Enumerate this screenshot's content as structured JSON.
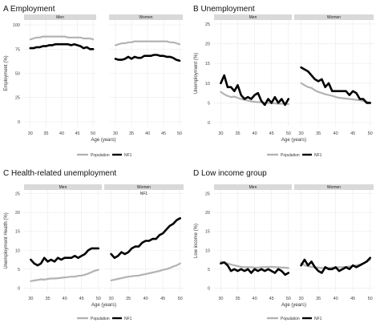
{
  "chart_data": [
    {
      "panel": "A Employment",
      "type": "line",
      "facets": [
        "Men",
        "Women"
      ],
      "xlabel": "Age (years)",
      "ylabel": "Employment (%)",
      "x_ticks": [
        "30",
        "35",
        "40",
        "45",
        "50"
      ],
      "y_ticks": [
        "0",
        "25",
        "50",
        "75",
        "100"
      ],
      "xlim": [
        28,
        51
      ],
      "ylim": [
        -5,
        105
      ],
      "legend": [
        "Population",
        "NF1"
      ],
      "series": [
        {
          "name": "Population",
          "color": "#b3b3b3",
          "facet": "Men",
          "x": [
            30,
            31,
            32,
            33,
            34,
            35,
            36,
            37,
            38,
            39,
            40,
            41,
            42,
            43,
            44,
            45,
            46,
            47,
            48,
            49,
            50
          ],
          "values": [
            85,
            86,
            87,
            87,
            88,
            88,
            88,
            88,
            88,
            88,
            88,
            88,
            87,
            87,
            87,
            87,
            87,
            86,
            86,
            86,
            85
          ]
        },
        {
          "name": "NF1",
          "color": "#000000",
          "facet": "Men",
          "x": [
            30,
            31,
            32,
            33,
            34,
            35,
            36,
            37,
            38,
            39,
            40,
            41,
            42,
            43,
            44,
            45,
            46,
            47,
            48,
            49,
            50
          ],
          "values": [
            76,
            76,
            77,
            77,
            78,
            78,
            79,
            79,
            80,
            80,
            80,
            80,
            80,
            79,
            80,
            79,
            78,
            76,
            77,
            75,
            75
          ]
        },
        {
          "name": "Population",
          "color": "#b3b3b3",
          "facet": "Women",
          "x": [
            30,
            31,
            32,
            33,
            34,
            35,
            36,
            37,
            38,
            39,
            40,
            41,
            42,
            43,
            44,
            45,
            46,
            47,
            48,
            49,
            50
          ],
          "values": [
            79,
            80,
            81,
            81,
            82,
            82,
            83,
            83,
            83,
            83,
            83,
            83,
            83,
            83,
            83,
            83,
            83,
            82,
            82,
            81,
            80
          ]
        },
        {
          "name": "NF1",
          "color": "#000000",
          "facet": "Women",
          "x": [
            30,
            31,
            32,
            33,
            34,
            35,
            36,
            37,
            38,
            39,
            40,
            41,
            42,
            43,
            44,
            45,
            46,
            47,
            48,
            49,
            50
          ],
          "values": [
            65,
            64,
            64,
            65,
            67,
            65,
            67,
            66,
            66,
            68,
            68,
            68,
            69,
            69,
            68,
            68,
            67,
            67,
            66,
            64,
            63
          ]
        }
      ]
    },
    {
      "panel": "B Unemployment",
      "type": "line",
      "facets": [
        "Men",
        "Women"
      ],
      "xlabel": "Age (years)",
      "ylabel": "Unemployment (%)",
      "x_ticks": [
        "30",
        "35",
        "40",
        "45",
        "50"
      ],
      "y_ticks": [
        "0",
        "5",
        "10",
        "15",
        "20",
        "25"
      ],
      "xlim": [
        28,
        51
      ],
      "ylim": [
        -1,
        26
      ],
      "legend": [
        "Population",
        "NF1"
      ],
      "series": [
        {
          "name": "Population",
          "color": "#b3b3b3",
          "facet": "Men",
          "x": [
            30,
            31,
            32,
            33,
            34,
            35,
            36,
            37,
            38,
            39,
            40,
            41,
            42,
            43,
            44,
            45,
            46,
            47,
            48,
            49,
            50
          ],
          "values": [
            7.8,
            7.2,
            6.8,
            6.5,
            6.6,
            6.3,
            6.0,
            5.8,
            5.6,
            5.4,
            5.3,
            5.2,
            5.2,
            5.0,
            5.0,
            4.9,
            4.9,
            4.8,
            4.8,
            4.8,
            4.7
          ]
        },
        {
          "name": "NF1",
          "color": "#000000",
          "facet": "Men",
          "x": [
            30,
            31,
            32,
            33,
            34,
            35,
            36,
            37,
            38,
            39,
            40,
            41,
            42,
            43,
            44,
            45,
            46,
            47,
            48,
            49,
            50
          ],
          "values": [
            10,
            12,
            9,
            9,
            8,
            9.5,
            7,
            6,
            6.5,
            6,
            7,
            7.5,
            5.5,
            4.5,
            6,
            5,
            6.5,
            5,
            6,
            4.5,
            6
          ]
        },
        {
          "name": "Population",
          "color": "#b3b3b3",
          "facet": "Women",
          "x": [
            30,
            31,
            32,
            33,
            34,
            35,
            36,
            37,
            38,
            39,
            40,
            41,
            42,
            43,
            44,
            45,
            46,
            47,
            48,
            49,
            50
          ],
          "values": [
            10,
            9.5,
            9,
            8.8,
            8.2,
            7.8,
            7.5,
            7.2,
            7,
            6.8,
            6.5,
            6.3,
            6.2,
            6.1,
            6,
            5.9,
            5.8,
            5.7,
            5.5,
            5.3,
            5.1
          ]
        },
        {
          "name": "NF1",
          "color": "#000000",
          "facet": "Women",
          "x": [
            30,
            31,
            32,
            33,
            34,
            35,
            36,
            37,
            38,
            39,
            40,
            41,
            42,
            43,
            44,
            45,
            46,
            47,
            48,
            49,
            50
          ],
          "values": [
            14,
            13.5,
            13,
            12,
            11,
            10.5,
            11,
            9,
            10,
            8,
            8,
            8,
            8,
            8,
            7,
            8,
            7.5,
            6,
            6,
            5,
            5
          ]
        }
      ]
    },
    {
      "panel": "C Health-related unemployment",
      "type": "line",
      "facets": [
        "Men",
        "Women"
      ],
      "xlabel": "Age (years)",
      "ylabel": "Unemployment Health (%)",
      "x_ticks": [
        "30",
        "35",
        "40",
        "45",
        "50"
      ],
      "y_ticks": [
        "0",
        "5",
        "10",
        "15",
        "20",
        "25"
      ],
      "xlim": [
        28,
        51
      ],
      "ylim": [
        -1,
        26
      ],
      "annotation": "NF1",
      "legend": [
        "Population",
        "NF1"
      ],
      "series": [
        {
          "name": "Population",
          "color": "#b3b3b3",
          "facet": "Men",
          "x": [
            30,
            31,
            32,
            33,
            34,
            35,
            36,
            37,
            38,
            39,
            40,
            41,
            42,
            43,
            44,
            45,
            46,
            47,
            48,
            49,
            50
          ],
          "values": [
            1.8,
            2.0,
            2.1,
            2.3,
            2.2,
            2.4,
            2.5,
            2.5,
            2.6,
            2.7,
            2.8,
            2.9,
            3.0,
            3.0,
            3.2,
            3.3,
            3.5,
            3.8,
            4.2,
            4.6,
            4.8
          ]
        },
        {
          "name": "NF1",
          "color": "#000000",
          "facet": "Men",
          "x": [
            30,
            31,
            32,
            33,
            34,
            35,
            36,
            37,
            38,
            39,
            40,
            41,
            42,
            43,
            44,
            45,
            46,
            47,
            48,
            49,
            50
          ],
          "values": [
            7.5,
            6.5,
            6.0,
            6.5,
            8.0,
            7.0,
            7.5,
            7.0,
            8.0,
            7.5,
            8.0,
            8.0,
            8.0,
            8.5,
            8.0,
            8.5,
            9.0,
            10.0,
            10.5,
            10.5,
            10.5
          ]
        },
        {
          "name": "Population",
          "color": "#b3b3b3",
          "facet": "Women",
          "x": [
            30,
            31,
            32,
            33,
            34,
            35,
            36,
            37,
            38,
            39,
            40,
            41,
            42,
            43,
            44,
            45,
            46,
            47,
            48,
            49,
            50
          ],
          "values": [
            2.0,
            2.2,
            2.4,
            2.6,
            2.8,
            3.0,
            3.1,
            3.2,
            3.3,
            3.5,
            3.7,
            3.9,
            4.1,
            4.3,
            4.5,
            4.8,
            5.0,
            5.3,
            5.7,
            6.0,
            6.5
          ]
        },
        {
          "name": "NF1",
          "color": "#000000",
          "facet": "Women",
          "x": [
            30,
            31,
            32,
            33,
            34,
            35,
            36,
            37,
            38,
            39,
            40,
            41,
            42,
            43,
            44,
            45,
            46,
            47,
            48,
            49,
            50
          ],
          "values": [
            9.0,
            8.0,
            8.5,
            9.5,
            9.0,
            9.5,
            10.5,
            11.0,
            11.0,
            12.0,
            12.5,
            12.5,
            13.0,
            13.0,
            14.0,
            14.5,
            15.5,
            16.5,
            17.0,
            18.0,
            18.5
          ]
        }
      ]
    },
    {
      "panel": "D Low income group",
      "type": "line",
      "facets": [
        "Men",
        "Women"
      ],
      "xlabel": "Age (years)",
      "ylabel": "Low income (%)",
      "x_ticks": [
        "30",
        "35",
        "40",
        "45",
        "50"
      ],
      "y_ticks": [
        "0",
        "5",
        "10",
        "15",
        "20",
        "25"
      ],
      "xlim": [
        28,
        51
      ],
      "ylim": [
        -1,
        26
      ],
      "legend": [
        "Population",
        "NF1"
      ],
      "series": [
        {
          "name": "Population",
          "color": "#b3b3b3",
          "facet": "Men",
          "x": [
            30,
            31,
            32,
            33,
            34,
            35,
            36,
            37,
            38,
            39,
            40,
            41,
            42,
            43,
            44,
            45,
            46,
            47,
            48,
            49,
            50
          ],
          "values": [
            7.0,
            6.8,
            6.5,
            6.2,
            6.0,
            5.8,
            5.6,
            5.5,
            5.5,
            5.5,
            5.4,
            5.4,
            5.5,
            5.5,
            5.6,
            5.6,
            5.5,
            5.5,
            5.4,
            5.4,
            5.3
          ]
        },
        {
          "name": "NF1",
          "color": "#000000",
          "facet": "Men",
          "x": [
            30,
            31,
            32,
            33,
            34,
            35,
            36,
            37,
            38,
            39,
            40,
            41,
            42,
            43,
            44,
            45,
            46,
            47,
            48,
            49,
            50
          ],
          "values": [
            6.5,
            6.8,
            6.0,
            4.5,
            5.0,
            4.5,
            5.0,
            4.5,
            5.0,
            4.0,
            5.0,
            4.5,
            5.0,
            4.5,
            5.0,
            4.5,
            4.0,
            5.0,
            4.5,
            3.5,
            4.0
          ]
        },
        {
          "name": "Population",
          "color": "#b3b3b3",
          "facet": "Women",
          "x": [
            30,
            31,
            32,
            33,
            34,
            35,
            36,
            37,
            38,
            39,
            40,
            41,
            42,
            43,
            44,
            45,
            46,
            47,
            48,
            49,
            50
          ],
          "values": [
            6.5,
            6.0,
            5.8,
            5.6,
            5.5,
            5.4,
            5.3,
            5.3,
            5.3,
            5.4,
            5.4,
            5.5,
            5.5,
            5.6,
            5.7,
            5.8,
            6.0,
            6.2,
            6.5,
            7.0,
            7.5
          ]
        },
        {
          "name": "NF1",
          "color": "#000000",
          "facet": "Women",
          "x": [
            30,
            31,
            32,
            33,
            34,
            35,
            36,
            37,
            38,
            39,
            40,
            41,
            42,
            43,
            44,
            45,
            46,
            47,
            48,
            49,
            50
          ],
          "values": [
            6.0,
            7.5,
            6.0,
            7.0,
            5.5,
            4.5,
            4.0,
            5.5,
            5.0,
            5.0,
            5.5,
            4.5,
            5.0,
            5.5,
            5.0,
            6.0,
            5.5,
            6.0,
            6.5,
            7.0,
            8.0
          ]
        }
      ]
    }
  ]
}
